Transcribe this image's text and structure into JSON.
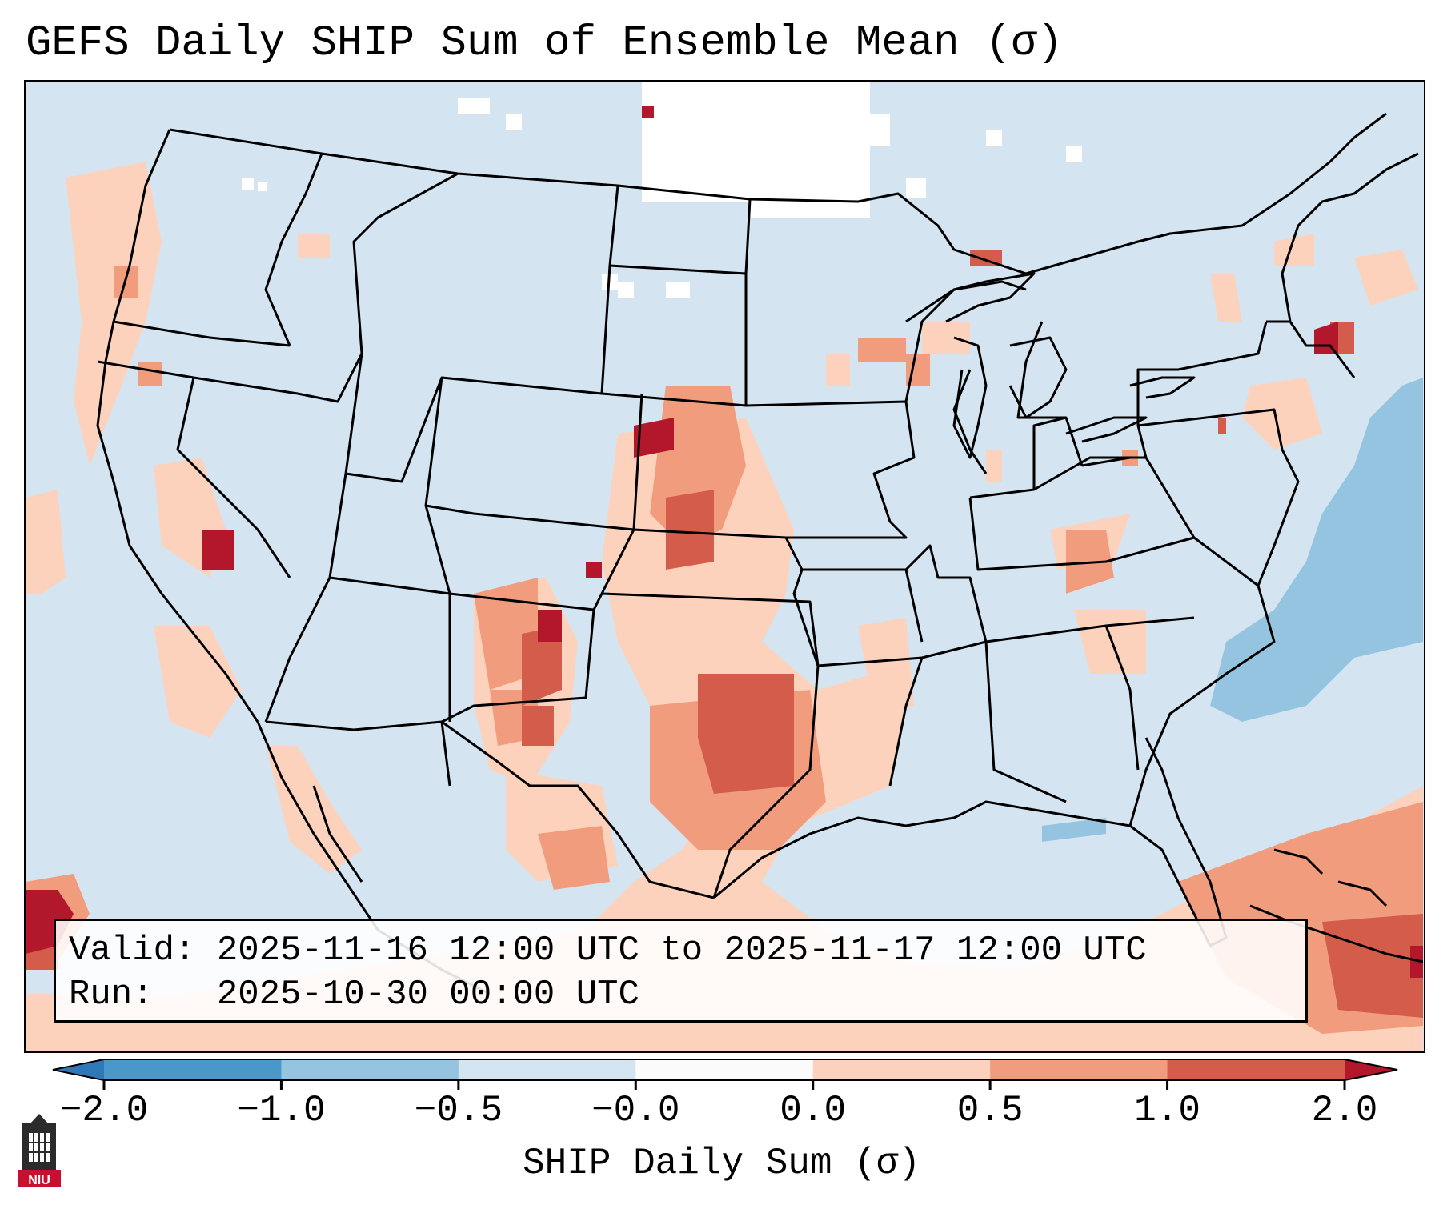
{
  "title": "GEFS Daily SHIP Sum of Ensemble Mean (σ)",
  "info": {
    "valid_label": "Valid:",
    "valid_value": "2025-11-16 12:00 UTC to 2025-11-17 12:00 UTC",
    "run_label": "Run:",
    "run_value": "2025-10-30 00:00 UTC"
  },
  "colorbar": {
    "label": "SHIP Daily Sum (σ)",
    "ticks": [
      "−2.0",
      "−1.0",
      "−0.5",
      "−0.0",
      "0.0",
      "0.5",
      "1.0",
      "2.0"
    ],
    "colors": [
      "#2e78b8",
      "#4a98c9",
      "#94c4df",
      "#d4e5f1",
      "#fbfbfb",
      "#fcd2bd",
      "#f19c7d",
      "#d35c4b",
      "#b2172b"
    ]
  },
  "map": {
    "region": "CONUS",
    "background_color": "#d4e5f1"
  },
  "logo": {
    "text": "NIU",
    "icon": "university-tower-icon"
  }
}
